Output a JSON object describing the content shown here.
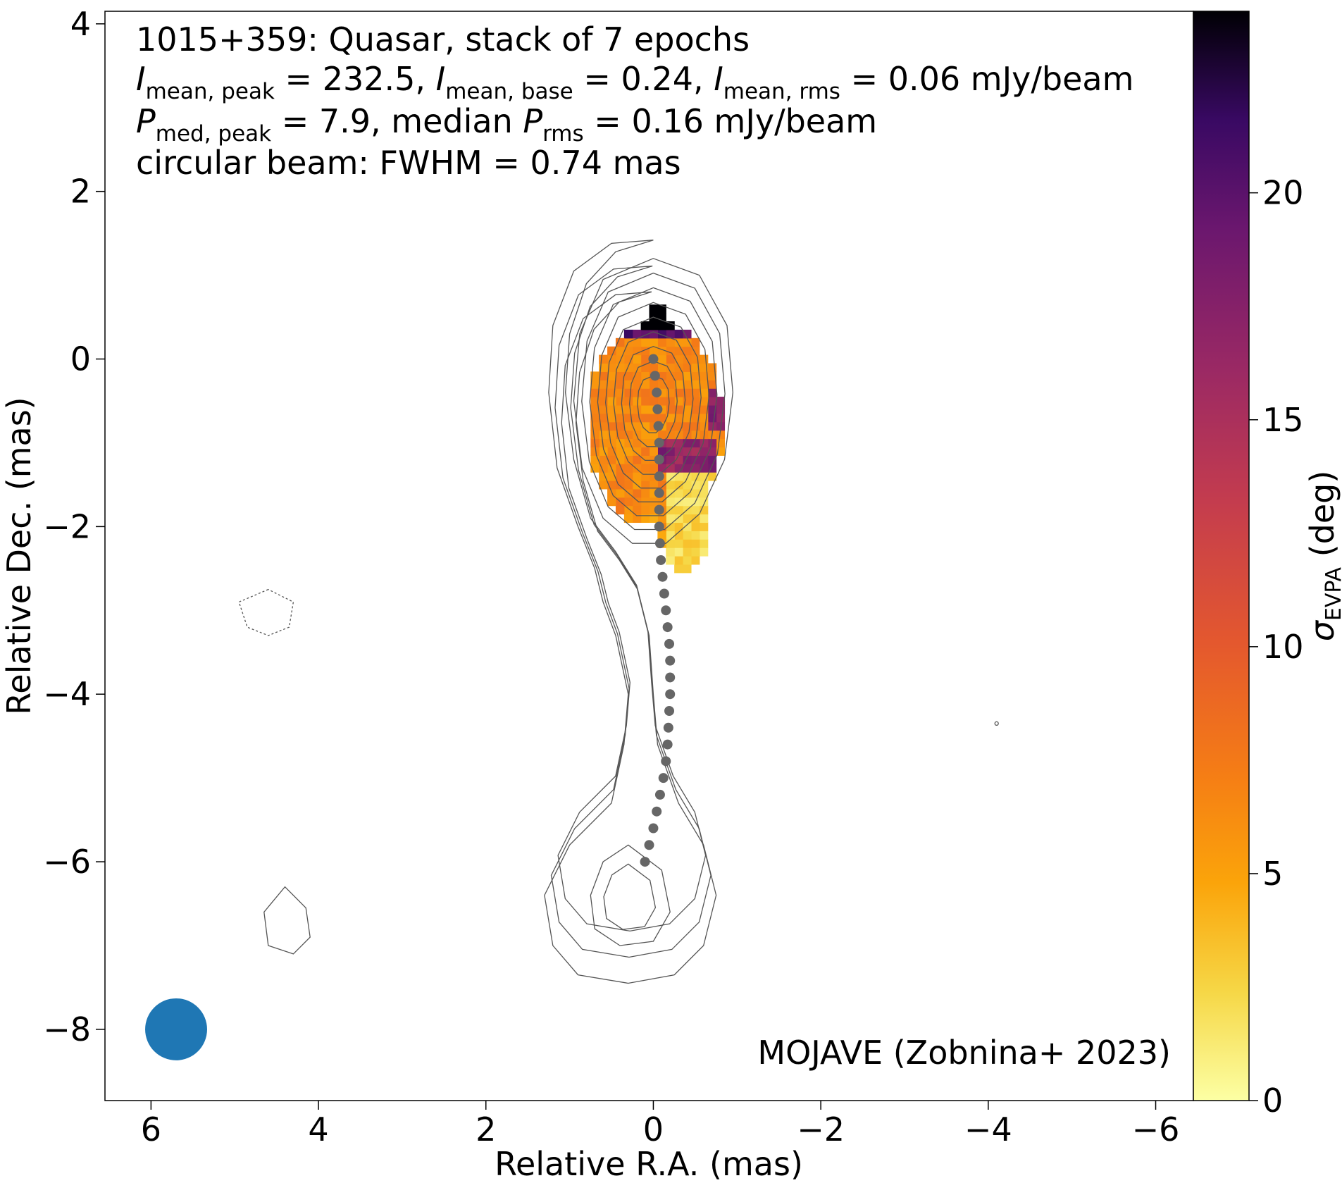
{
  "chart_data": {
    "type": "heatmap",
    "description_lines": [
      {
        "parts": [
          {
            "t": "1015+359: Quasar, stack of 7 epochs"
          }
        ]
      },
      {
        "parts": [
          {
            "t": "I",
            "it": true
          },
          {
            "t": "mean, peak",
            "sub": true
          },
          {
            "t": " = 232.5, "
          },
          {
            "t": "I",
            "it": true
          },
          {
            "t": "mean, base",
            "sub": true
          },
          {
            "t": " = 0.24, "
          },
          {
            "t": "I",
            "it": true
          },
          {
            "t": "mean, rms",
            "sub": true
          },
          {
            "t": " = 0.06 mJy/beam"
          }
        ]
      },
      {
        "parts": [
          {
            "t": "P",
            "it": true
          },
          {
            "t": "med, peak",
            "sub": true
          },
          {
            "t": " = 7.9, median "
          },
          {
            "t": "P",
            "it": true
          },
          {
            "t": "rms",
            "sub": true
          },
          {
            "t": " = 0.16 mJy/beam"
          }
        ]
      },
      {
        "parts": [
          {
            "t": "circular beam: FWHM = 0.74 mas"
          }
        ]
      }
    ],
    "credit": "MOJAVE (Zobnina+ 2023)",
    "xlabel": "Relative R.A. (mas)",
    "ylabel": "Relative Dec. (mas)",
    "xlim": [
      6.55,
      -6.45
    ],
    "ylim": [
      -8.85,
      4.15
    ],
    "x_ticks": [
      6,
      4,
      2,
      0,
      -2,
      -4,
      -6
    ],
    "x_tick_labels": [
      "6",
      "4",
      "2",
      "0",
      "−2",
      "−4",
      "−6"
    ],
    "y_ticks": [
      4,
      2,
      0,
      -2,
      -4,
      -6,
      -8
    ],
    "y_tick_labels": [
      "4",
      "2",
      "0",
      "−2",
      "−4",
      "−6",
      "−8"
    ],
    "colorbar": {
      "label_main": "σ",
      "label_sub": "EVPA",
      "label_unit": " (deg)",
      "range": [
        0,
        24
      ],
      "ticks": [
        0,
        5,
        10,
        15,
        20
      ],
      "tick_labels": [
        "0",
        "5",
        "10",
        "15",
        "20"
      ],
      "colormap": "inferno_r"
    },
    "beam": {
      "ra": 5.7,
      "dec": -8.0,
      "fwhm": 0.74,
      "color": "#1f77b4"
    },
    "ridge_line": {
      "color": "#666666",
      "points": [
        [
          0.0,
          0.0
        ],
        [
          -0.02,
          -0.2
        ],
        [
          -0.04,
          -0.4
        ],
        [
          -0.05,
          -0.6
        ],
        [
          -0.06,
          -0.8
        ],
        [
          -0.07,
          -1.0
        ],
        [
          -0.07,
          -1.2
        ],
        [
          -0.07,
          -1.4
        ],
        [
          -0.07,
          -1.6
        ],
        [
          -0.07,
          -1.8
        ],
        [
          -0.07,
          -2.0
        ],
        [
          -0.08,
          -2.2
        ],
        [
          -0.09,
          -2.4
        ],
        [
          -0.11,
          -2.6
        ],
        [
          -0.13,
          -2.8
        ],
        [
          -0.15,
          -3.0
        ],
        [
          -0.17,
          -3.2
        ],
        [
          -0.19,
          -3.4
        ],
        [
          -0.2,
          -3.6
        ],
        [
          -0.2,
          -3.8
        ],
        [
          -0.2,
          -4.0
        ],
        [
          -0.19,
          -4.2
        ],
        [
          -0.18,
          -4.4
        ],
        [
          -0.17,
          -4.6
        ],
        [
          -0.15,
          -4.8
        ],
        [
          -0.12,
          -5.0
        ],
        [
          -0.08,
          -5.2
        ],
        [
          -0.04,
          -5.4
        ],
        [
          0.0,
          -5.6
        ],
        [
          0.05,
          -5.8
        ],
        [
          0.1,
          -6.0
        ]
      ]
    },
    "evpa_error_map": {
      "pixel_size_mas": 0.1,
      "region": "core and inner jet, RA -0.9 to 0.9, Dec -2.5 to 0.6",
      "features": [
        "high sigma (about 20-24 deg, black) along the northern rim near Dec 0.4-0.6",
        "dark purple band (about 16-20 deg) near RA -0.3 to -0.7, Dec -1.0 to -1.2",
        "orange (about 5-8 deg) across most of the core region",
        "light yellow (about 1-3 deg) in the southern tail near RA -0.4, Dec -1.3 to -2.4"
      ]
    },
    "total_intensity_contours": {
      "color": "#555555",
      "levels_description": "logarithmic contour levels of stacked total intensity",
      "negative_contour_dashed": true
    }
  }
}
